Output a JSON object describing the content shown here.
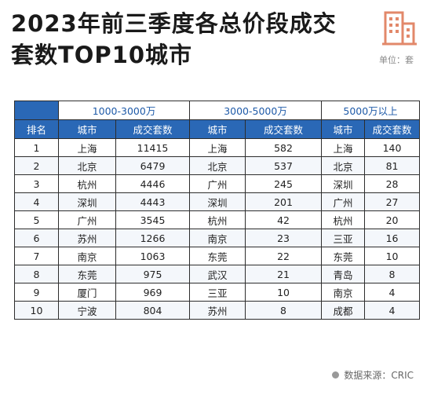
{
  "title": "2023年前三季度各总价段成交套数TOP10城市",
  "unit": "单位：套",
  "source": "数据来源：CRIC",
  "colors": {
    "header_blue": "#2a68b6",
    "group_text": "#1e5aa8",
    "logo_orange": "#e2886a"
  },
  "logo_icon": "building-icon",
  "table": {
    "group_headers": [
      "1000-3000万",
      "3000-5000万",
      "5000万以上"
    ],
    "columns": [
      "排名",
      "城市",
      "成交套数",
      "城市",
      "成交套数",
      "城市",
      "成交套数"
    ],
    "rows": [
      [
        "1",
        "上海",
        "11415",
        "上海",
        "582",
        "上海",
        "140"
      ],
      [
        "2",
        "北京",
        "6479",
        "北京",
        "537",
        "北京",
        "81"
      ],
      [
        "3",
        "杭州",
        "4446",
        "广州",
        "245",
        "深圳",
        "28"
      ],
      [
        "4",
        "深圳",
        "4443",
        "深圳",
        "201",
        "广州",
        "27"
      ],
      [
        "5",
        "广州",
        "3545",
        "杭州",
        "42",
        "杭州",
        "20"
      ],
      [
        "6",
        "苏州",
        "1266",
        "南京",
        "23",
        "三亚",
        "16"
      ],
      [
        "7",
        "南京",
        "1063",
        "东莞",
        "22",
        "东莞",
        "10"
      ],
      [
        "8",
        "东莞",
        "975",
        "武汉",
        "21",
        "青岛",
        "8"
      ],
      [
        "9",
        "厦门",
        "969",
        "三亚",
        "10",
        "南京",
        "4"
      ],
      [
        "10",
        "宁波",
        "804",
        "苏州",
        "8",
        "成都",
        "4"
      ]
    ]
  }
}
